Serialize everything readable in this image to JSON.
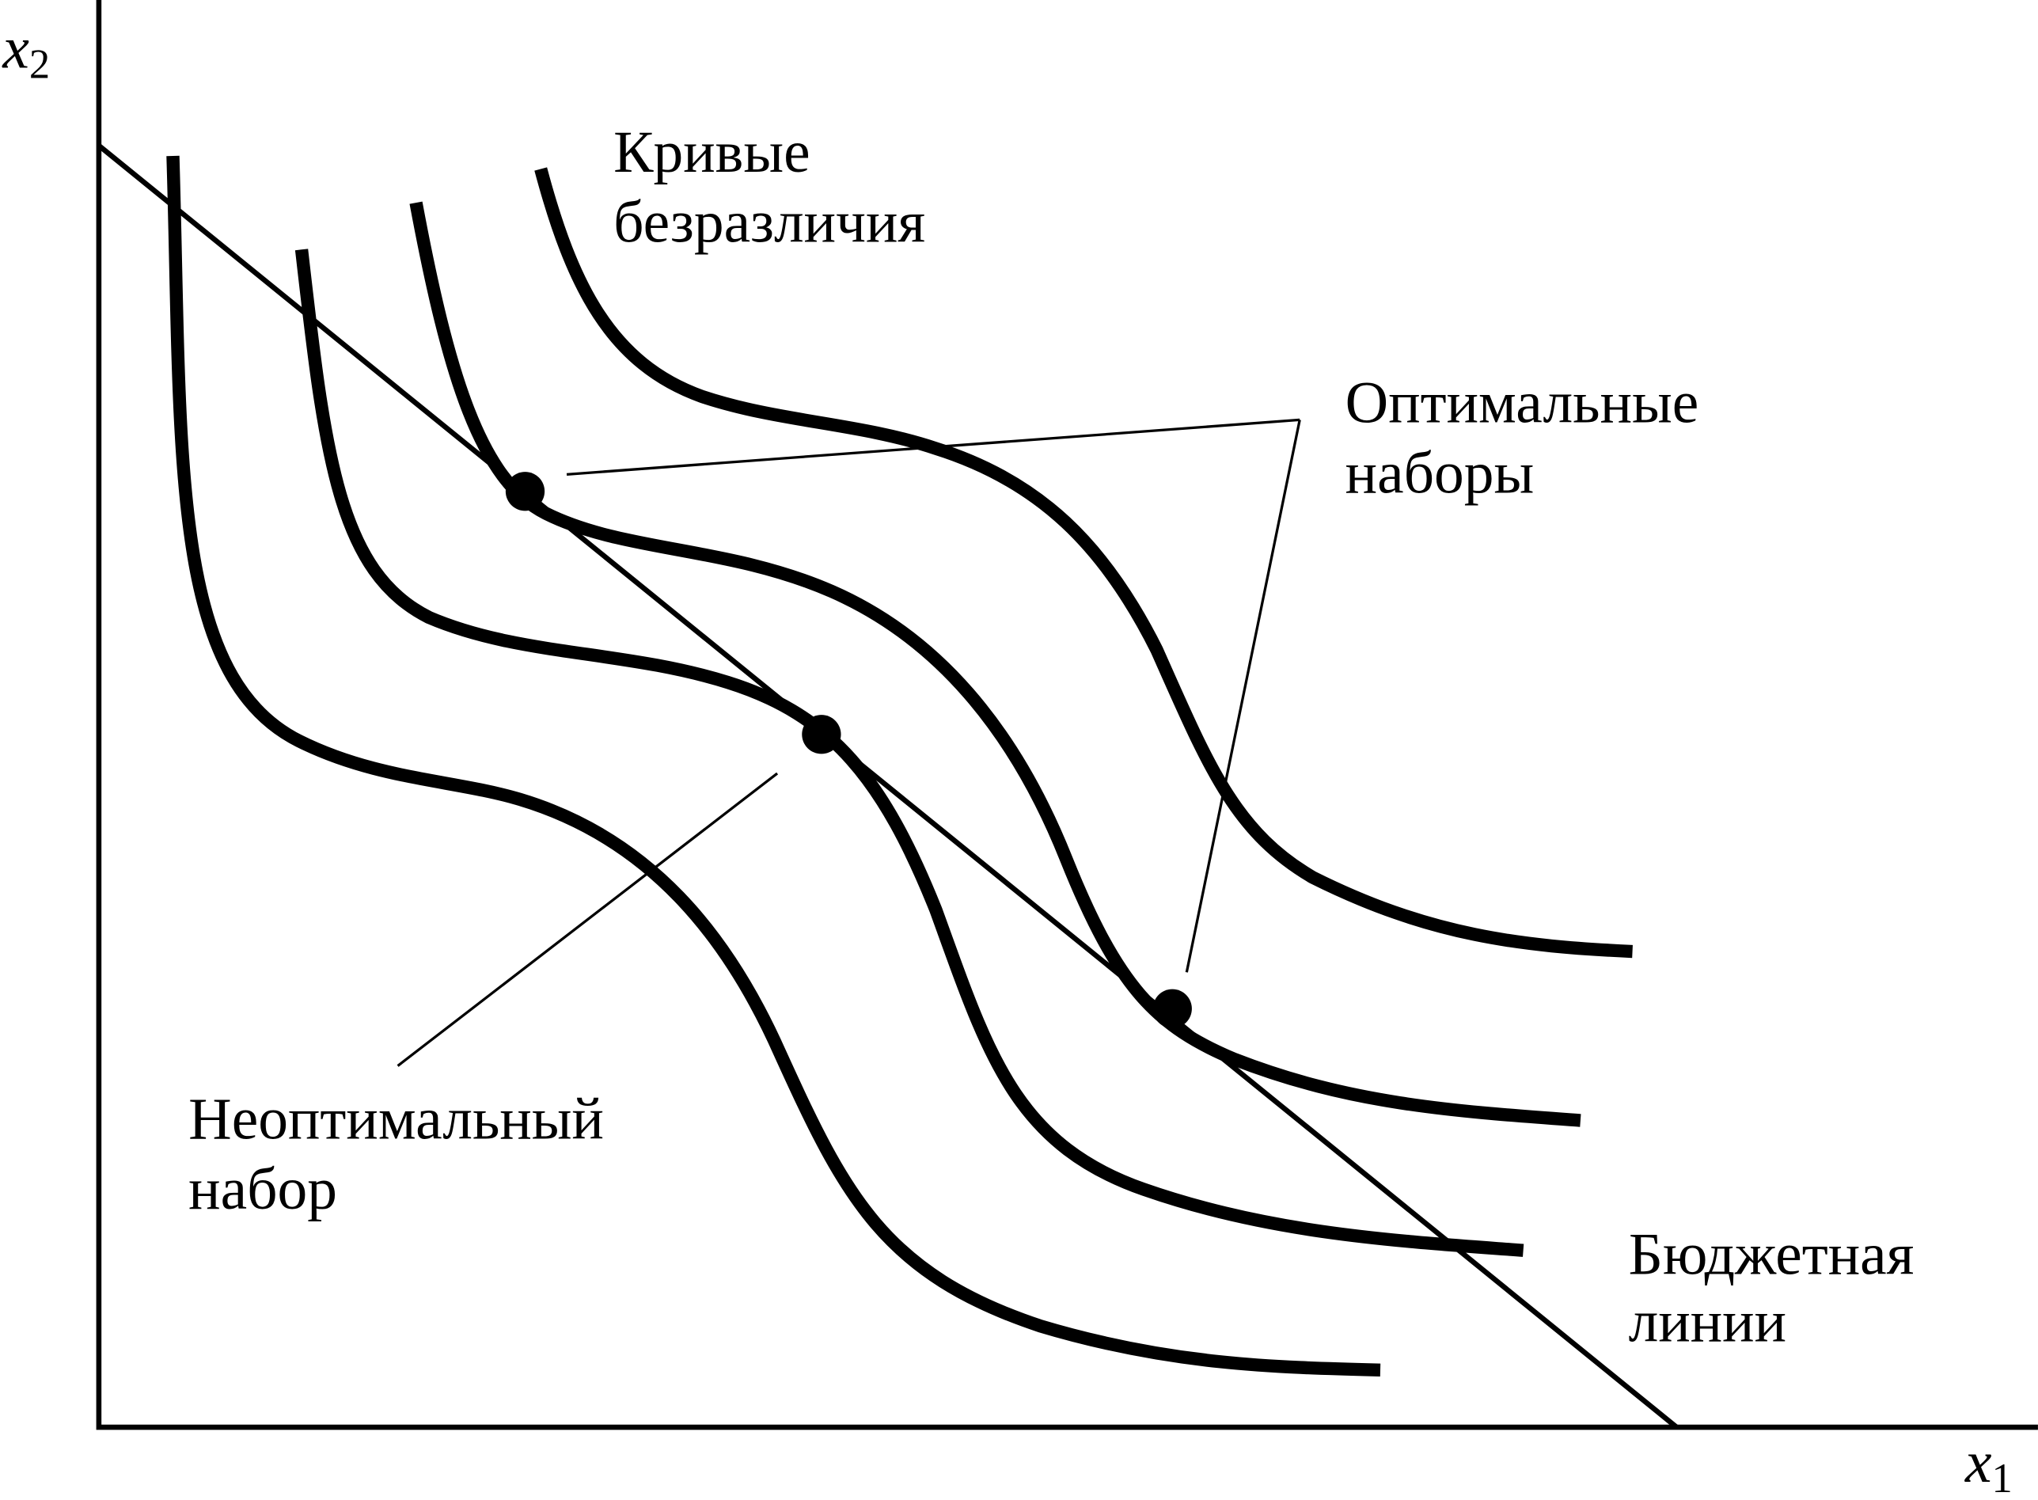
{
  "axes": {
    "y_label": {
      "base": "x",
      "sub": "2"
    },
    "x_label": {
      "base": "x",
      "sub": "1"
    }
  },
  "labels": {
    "indifference_curves": [
      "Кривые",
      "безразличия"
    ],
    "optimal_bundles": [
      "Оптимальные",
      "наборы"
    ],
    "nonoptimal_bundle": [
      "Неоптимальный",
      "набор"
    ],
    "budget_line": [
      "Бюджетная",
      "линии"
    ]
  }
}
